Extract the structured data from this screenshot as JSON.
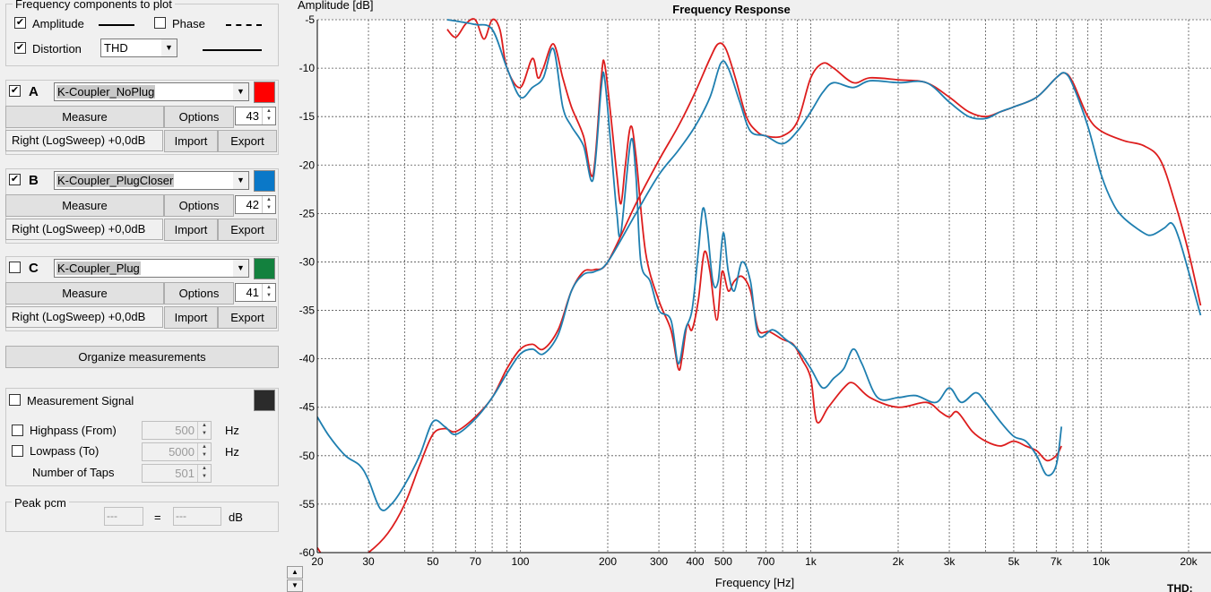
{
  "freq_components": {
    "title": "Frequency components to plot",
    "amplitude": {
      "label": "Amplitude",
      "checked": true
    },
    "phase": {
      "label": "Phase",
      "checked": false
    },
    "distortion": {
      "label": "Distortion",
      "checked": true,
      "mode": "THD"
    }
  },
  "measurements": [
    {
      "letter": "A",
      "checked": true,
      "name": "K-Coupler_NoPlug",
      "color": "#ff0000",
      "measure_label": "Measure",
      "options_label": "Options",
      "count": "43",
      "info": "Right (LogSweep) +0,0dB",
      "import_label": "Import",
      "export_label": "Export"
    },
    {
      "letter": "B",
      "checked": true,
      "name": "K-Coupler_PlugCloser",
      "color": "#0a78c8",
      "measure_label": "Measure",
      "options_label": "Options",
      "count": "42",
      "info": "Right (LogSweep) +0,0dB",
      "import_label": "Import",
      "export_label": "Export"
    },
    {
      "letter": "C",
      "checked": false,
      "name": "K-Coupler_Plug",
      "color": "#13813e",
      "measure_label": "Measure",
      "options_label": "Options",
      "count": "41",
      "info": "Right (LogSweep) +0,0dB",
      "import_label": "Import",
      "export_label": "Export"
    }
  ],
  "organize_label": "Organize measurements",
  "signal": {
    "label": "Measurement Signal",
    "checked": false,
    "color": "#2b2b2b",
    "highpass": {
      "label": "Highpass (From)",
      "value": "500",
      "unit": "Hz"
    },
    "lowpass": {
      "label": "Lowpass (To)",
      "value": "5000",
      "unit": "Hz"
    },
    "taps": {
      "label": "Number of Taps",
      "value": "501"
    }
  },
  "peak": {
    "label": "Peak pcm",
    "left": "---",
    "equals": "=",
    "right": "---",
    "unit": "dB"
  },
  "chart_data": {
    "type": "line",
    "title": "Frequency Response",
    "xlabel": "Frequency [Hz]",
    "ylabel": "Amplitude [dB]",
    "x_scale": "log",
    "xlim": [
      20,
      22000
    ],
    "ylim": [
      -60,
      -5
    ],
    "x_ticks": [
      20,
      30,
      50,
      70,
      100,
      200,
      300,
      400,
      500,
      700,
      1000,
      2000,
      3000,
      5000,
      7000,
      10000,
      20000
    ],
    "x_tick_labels": [
      "20",
      "30",
      "50",
      "70",
      "100",
      "200",
      "300",
      "400",
      "500",
      "700",
      "1k",
      "2k",
      "3k",
      "5k",
      "7k",
      "10k",
      "20k"
    ],
    "y_ticks": [
      -5,
      -10,
      -15,
      -20,
      -25,
      -30,
      -35,
      -40,
      -45,
      -50,
      -55,
      -60
    ],
    "grid": true,
    "footer_label": "THD:",
    "series": [
      {
        "name": "A Amplitude",
        "color": "#dd1d1d",
        "points": [
          [
            56,
            -6
          ],
          [
            60,
            -6.8
          ],
          [
            65,
            -5.4
          ],
          [
            70,
            -5
          ],
          [
            75,
            -7
          ],
          [
            80,
            -5
          ],
          [
            85,
            -6
          ],
          [
            90,
            -10
          ],
          [
            100,
            -12
          ],
          [
            110,
            -9
          ],
          [
            115,
            -11
          ],
          [
            120,
            -10
          ],
          [
            130,
            -7.5
          ],
          [
            140,
            -11
          ],
          [
            150,
            -14
          ],
          [
            165,
            -17
          ],
          [
            178,
            -21
          ],
          [
            190,
            -11
          ],
          [
            195,
            -9.5
          ],
          [
            205,
            -15
          ],
          [
            215,
            -21
          ],
          [
            222,
            -24
          ],
          [
            230,
            -20
          ],
          [
            240,
            -16
          ],
          [
            250,
            -19
          ],
          [
            270,
            -29
          ],
          [
            300,
            -34
          ],
          [
            330,
            -37
          ],
          [
            350,
            -41
          ],
          [
            360,
            -40
          ],
          [
            375,
            -36.5
          ],
          [
            390,
            -37
          ],
          [
            410,
            -34
          ],
          [
            430,
            -29
          ],
          [
            450,
            -31
          ],
          [
            475,
            -36
          ],
          [
            495,
            -31
          ],
          [
            520,
            -33
          ],
          [
            545,
            -32
          ],
          [
            580,
            -31.5
          ],
          [
            620,
            -33
          ],
          [
            660,
            -37
          ],
          [
            720,
            -37.2
          ],
          [
            800,
            -38
          ],
          [
            870,
            -38.5
          ],
          [
            930,
            -40
          ],
          [
            1000,
            -42
          ],
          [
            1050,
            -46.5
          ],
          [
            1150,
            -45
          ],
          [
            1300,
            -43
          ],
          [
            1400,
            -42.5
          ],
          [
            1600,
            -44
          ],
          [
            2000,
            -45
          ],
          [
            2500,
            -44.5
          ],
          [
            2800,
            -45.5
          ],
          [
            3000,
            -46
          ],
          [
            3200,
            -45.5
          ],
          [
            3600,
            -47.5
          ],
          [
            4000,
            -48.5
          ],
          [
            4500,
            -49
          ],
          [
            5000,
            -48.5
          ],
          [
            5500,
            -49
          ],
          [
            6000,
            -49.5
          ],
          [
            6500,
            -50.5
          ],
          [
            7000,
            -50
          ],
          [
            7300,
            -49
          ]
        ]
      },
      {
        "name": "B Amplitude",
        "color": "#1f7fb0",
        "points": [
          [
            56,
            -5
          ],
          [
            62,
            -5.2
          ],
          [
            70,
            -5.5
          ],
          [
            80,
            -6
          ],
          [
            90,
            -10
          ],
          [
            100,
            -13
          ],
          [
            110,
            -12
          ],
          [
            120,
            -11
          ],
          [
            130,
            -8
          ],
          [
            140,
            -14
          ],
          [
            150,
            -16
          ],
          [
            165,
            -18
          ],
          [
            178,
            -21.5
          ],
          [
            190,
            -12
          ],
          [
            195,
            -11
          ],
          [
            205,
            -18
          ],
          [
            215,
            -25
          ],
          [
            222,
            -27
          ],
          [
            240,
            -17.5
          ],
          [
            250,
            -21
          ],
          [
            260,
            -30
          ],
          [
            280,
            -32
          ],
          [
            300,
            -35
          ],
          [
            330,
            -36
          ],
          [
            350,
            -40.5
          ],
          [
            370,
            -37
          ],
          [
            390,
            -35
          ],
          [
            410,
            -29
          ],
          [
            425,
            -24.5
          ],
          [
            440,
            -26.5
          ],
          [
            460,
            -32
          ],
          [
            480,
            -32
          ],
          [
            500,
            -27
          ],
          [
            520,
            -31
          ],
          [
            545,
            -33
          ],
          [
            580,
            -30
          ],
          [
            620,
            -32
          ],
          [
            660,
            -37.5
          ],
          [
            740,
            -37
          ],
          [
            820,
            -38
          ],
          [
            900,
            -39
          ],
          [
            1000,
            -41
          ],
          [
            1100,
            -43
          ],
          [
            1200,
            -42
          ],
          [
            1300,
            -41
          ],
          [
            1400,
            -39
          ],
          [
            1500,
            -40.5
          ],
          [
            1700,
            -44
          ],
          [
            2000,
            -44
          ],
          [
            2300,
            -43.8
          ],
          [
            2700,
            -44.5
          ],
          [
            3000,
            -43
          ],
          [
            3300,
            -44.5
          ],
          [
            3700,
            -43.5
          ],
          [
            4000,
            -44.5
          ],
          [
            4500,
            -46.5
          ],
          [
            5000,
            -48
          ],
          [
            5500,
            -48.5
          ],
          [
            6000,
            -50
          ],
          [
            6500,
            -52
          ],
          [
            7000,
            -51
          ],
          [
            7300,
            -47
          ]
        ]
      },
      {
        "name": "A Distortion",
        "color": "#dd1d1d",
        "points": [
          [
            20,
            -59.5
          ],
          [
            22,
            -61
          ],
          [
            26,
            -61
          ],
          [
            30,
            -60
          ],
          [
            35,
            -58
          ],
          [
            40,
            -55
          ],
          [
            45,
            -51
          ],
          [
            50,
            -47.8
          ],
          [
            55,
            -47.2
          ],
          [
            60,
            -47.5
          ],
          [
            70,
            -46
          ],
          [
            80,
            -44
          ],
          [
            90,
            -41
          ],
          [
            100,
            -39
          ],
          [
            110,
            -38.5
          ],
          [
            120,
            -39
          ],
          [
            135,
            -37
          ],
          [
            150,
            -33
          ],
          [
            165,
            -31
          ],
          [
            180,
            -30.8
          ],
          [
            200,
            -30
          ],
          [
            250,
            -24
          ],
          [
            300,
            -19.5
          ],
          [
            350,
            -16
          ],
          [
            400,
            -12.5
          ],
          [
            450,
            -9
          ],
          [
            480,
            -7.5
          ],
          [
            510,
            -8
          ],
          [
            550,
            -11
          ],
          [
            600,
            -15
          ],
          [
            650,
            -16.5
          ],
          [
            700,
            -17
          ],
          [
            800,
            -17
          ],
          [
            900,
            -15.5
          ],
          [
            1000,
            -11
          ],
          [
            1100,
            -9.5
          ],
          [
            1200,
            -10
          ],
          [
            1400,
            -11.5
          ],
          [
            1600,
            -11
          ],
          [
            2000,
            -11.2
          ],
          [
            2500,
            -11.5
          ],
          [
            3000,
            -13
          ],
          [
            3500,
            -14.5
          ],
          [
            4000,
            -15
          ],
          [
            4500,
            -14.5
          ],
          [
            5000,
            -14
          ],
          [
            6000,
            -13
          ],
          [
            7000,
            -11
          ],
          [
            7500,
            -10.5
          ],
          [
            8000,
            -11.5
          ],
          [
            9000,
            -15
          ],
          [
            10000,
            -16.5
          ],
          [
            12000,
            -17.5
          ],
          [
            14000,
            -18
          ],
          [
            16000,
            -19.5
          ],
          [
            18000,
            -24
          ],
          [
            20000,
            -29
          ],
          [
            22000,
            -34.5
          ]
        ]
      },
      {
        "name": "B Distortion",
        "color": "#1f7fb0",
        "points": [
          [
            20,
            -46
          ],
          [
            22,
            -48
          ],
          [
            25,
            -50
          ],
          [
            28,
            -51
          ],
          [
            30,
            -52.5
          ],
          [
            33,
            -55.5
          ],
          [
            36,
            -55
          ],
          [
            40,
            -53
          ],
          [
            45,
            -50
          ],
          [
            50,
            -46.5
          ],
          [
            55,
            -47
          ],
          [
            60,
            -47.8
          ],
          [
            70,
            -46.2
          ],
          [
            80,
            -44
          ],
          [
            90,
            -41.5
          ],
          [
            100,
            -39.5
          ],
          [
            110,
            -39
          ],
          [
            120,
            -39.5
          ],
          [
            135,
            -37.5
          ],
          [
            150,
            -33
          ],
          [
            165,
            -31.3
          ],
          [
            180,
            -31
          ],
          [
            200,
            -30
          ],
          [
            250,
            -25
          ],
          [
            300,
            -21
          ],
          [
            350,
            -18.5
          ],
          [
            400,
            -16
          ],
          [
            450,
            -13
          ],
          [
            490,
            -9.5
          ],
          [
            520,
            -10
          ],
          [
            570,
            -13.5
          ],
          [
            620,
            -16.5
          ],
          [
            700,
            -17
          ],
          [
            800,
            -17.8
          ],
          [
            900,
            -16.5
          ],
          [
            1000,
            -14.5
          ],
          [
            1100,
            -12.5
          ],
          [
            1200,
            -11.5
          ],
          [
            1400,
            -12
          ],
          [
            1600,
            -11.3
          ],
          [
            2000,
            -11.5
          ],
          [
            2500,
            -11.5
          ],
          [
            3000,
            -13.5
          ],
          [
            3500,
            -15
          ],
          [
            4000,
            -15.2
          ],
          [
            4500,
            -14.5
          ],
          [
            5000,
            -14
          ],
          [
            6000,
            -13
          ],
          [
            7000,
            -11
          ],
          [
            7500,
            -10.5
          ],
          [
            8000,
            -11.8
          ],
          [
            9000,
            -16
          ],
          [
            10000,
            -21
          ],
          [
            11000,
            -24
          ],
          [
            12000,
            -25.5
          ],
          [
            14000,
            -27
          ],
          [
            15000,
            -27.2
          ],
          [
            16500,
            -26.5
          ],
          [
            17500,
            -26
          ],
          [
            18500,
            -27.5
          ],
          [
            20000,
            -31
          ],
          [
            22000,
            -35.5
          ]
        ]
      }
    ]
  }
}
